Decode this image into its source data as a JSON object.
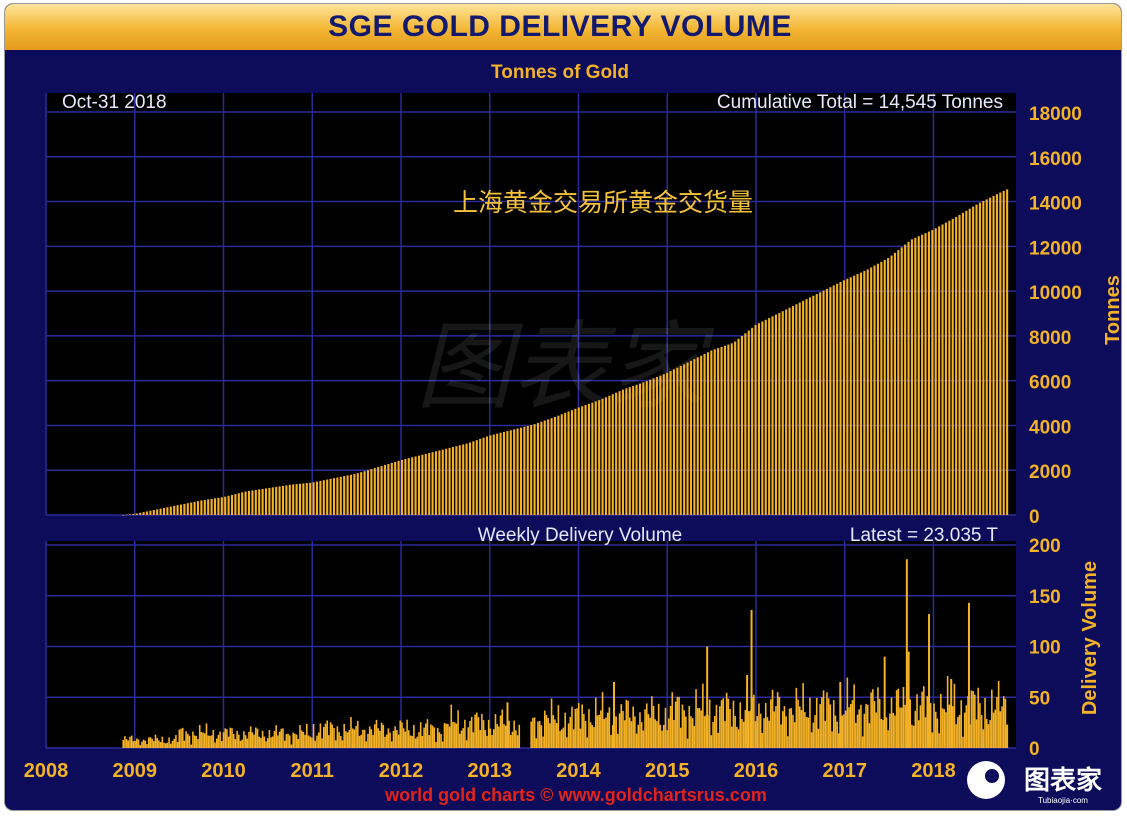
{
  "title": "SGE GOLD DELIVERY VOLUME",
  "subtitle": "Tonnes of Gold",
  "date_label": "Oct-31  2018",
  "cumulative_label": "Cumulative Total = 14,545 Tonnes",
  "chinese_caption": "上海黄金交易所黄金交货量",
  "weekly_title": "Weekly Delivery Volume",
  "latest_label": "Latest = 23.035 T",
  "footer": "world gold charts © www.goldchartsrus.com",
  "brand_text": "图表家",
  "brand_url": "Tubiaojia·com",
  "watermark_text": "图表家",
  "colors": {
    "background": "#0c0c5a",
    "bar": "#f3b227",
    "grid": "#2b2b9a",
    "tick_text": "#f3b227",
    "title_text": "#131a6e",
    "footer_text": "#e2231a"
  },
  "chart_data": [
    {
      "type": "bar",
      "title": "Tonnes of Gold",
      "ylabel": "Tonnes",
      "xlim": [
        2008.0,
        2018.93
      ],
      "ylim": [
        0,
        18000
      ],
      "x_ticks": [
        "2008",
        "2009",
        "2010",
        "2011",
        "2012",
        "2013",
        "2014",
        "2015",
        "2016",
        "2017",
        "2018"
      ],
      "y_ticks": [
        "0",
        "2000",
        "4000",
        "6000",
        "8000",
        "10000",
        "12000",
        "14000",
        "16000",
        "18000"
      ],
      "grid": true,
      "x": [
        2008.87,
        2009.0,
        2009.25,
        2009.5,
        2009.75,
        2010.0,
        2010.25,
        2010.5,
        2010.75,
        2011.0,
        2011.25,
        2011.5,
        2011.75,
        2012.0,
        2012.25,
        2012.5,
        2012.75,
        2013.0,
        2013.25,
        2013.5,
        2013.75,
        2014.0,
        2014.25,
        2014.5,
        2014.75,
        2015.0,
        2015.25,
        2015.5,
        2015.75,
        2016.0,
        2016.25,
        2016.5,
        2016.75,
        2017.0,
        2017.25,
        2017.5,
        2017.75,
        2018.0,
        2018.25,
        2018.5,
        2018.75,
        2018.83
      ],
      "values": [
        0,
        50,
        250,
        450,
        650,
        800,
        1050,
        1200,
        1350,
        1450,
        1650,
        1850,
        2150,
        2450,
        2700,
        2950,
        3200,
        3550,
        3800,
        4050,
        4400,
        4800,
        5150,
        5600,
        5950,
        6350,
        6850,
        7350,
        7700,
        8500,
        9000,
        9500,
        10000,
        10500,
        10950,
        11500,
        12300,
        12750,
        13300,
        13900,
        14400,
        14545
      ]
    },
    {
      "type": "bar",
      "title": "Weekly Delivery Volume",
      "ylabel": "Delivery Volume",
      "xlim": [
        2008.0,
        2018.93
      ],
      "ylim": [
        0,
        200
      ],
      "y_ticks": [
        "0",
        "50",
        "100",
        "150",
        "200"
      ],
      "grid": true,
      "latest": 23.035,
      "baseline_by_year": [
        {
          "from": 2008.87,
          "to": 2009.5,
          "value": 8
        },
        {
          "from": 2009.5,
          "to": 2011.0,
          "value": 14
        },
        {
          "from": 2011.0,
          "to": 2012.5,
          "value": 18
        },
        {
          "from": 2012.5,
          "to": 2013.5,
          "value": 24
        },
        {
          "from": 2013.5,
          "to": 2014.0,
          "value": 28
        },
        {
          "from": 2014.0,
          "to": 2015.0,
          "value": 32
        },
        {
          "from": 2015.0,
          "to": 2016.0,
          "value": 36
        },
        {
          "from": 2016.0,
          "to": 2017.0,
          "value": 38
        },
        {
          "from": 2017.0,
          "to": 2018.0,
          "value": 40
        },
        {
          "from": 2018.0,
          "to": 2018.83,
          "value": 40
        }
      ],
      "spikes": [
        {
          "x": 2013.2,
          "value": 45
        },
        {
          "x": 2014.4,
          "value": 65
        },
        {
          "x": 2015.45,
          "value": 100
        },
        {
          "x": 2015.95,
          "value": 136
        },
        {
          "x": 2015.9,
          "value": 72
        },
        {
          "x": 2016.95,
          "value": 65
        },
        {
          "x": 2017.45,
          "value": 90
        },
        {
          "x": 2017.7,
          "value": 186
        },
        {
          "x": 2017.72,
          "value": 95
        },
        {
          "x": 2017.95,
          "value": 132
        },
        {
          "x": 2018.4,
          "value": 143
        },
        {
          "x": 2018.2,
          "value": 68
        }
      ]
    }
  ]
}
